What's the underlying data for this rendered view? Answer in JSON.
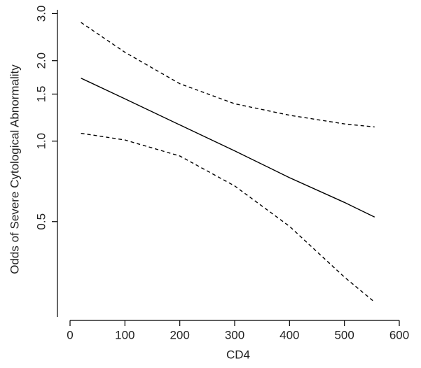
{
  "chart_data": {
    "type": "line",
    "xlabel": "CD4",
    "ylabel": "Odds of Severe Cytological Abnormality",
    "x": [
      20,
      100,
      200,
      300,
      400,
      500,
      555
    ],
    "series": [
      {
        "color": "#000000",
        "style": "solid",
        "values": [
          1.72,
          1.44,
          1.15,
          0.92,
          0.73,
          0.59,
          0.52
        ]
      },
      {
        "color": "#000000",
        "style": "dashed",
        "values": [
          2.78,
          2.15,
          1.64,
          1.38,
          1.25,
          1.16,
          1.13
        ]
      },
      {
        "color": "#000000",
        "style": "dashed",
        "values": [
          1.07,
          1.01,
          0.88,
          0.68,
          0.48,
          0.31,
          0.25
        ]
      }
    ],
    "xlim": [
      0,
      600
    ],
    "xticks": [
      0,
      100,
      200,
      300,
      400,
      500,
      600
    ],
    "ylim": [
      0.22,
      3.1
    ],
    "ylog": true,
    "yticks": [
      0.5,
      {
        "value": 1,
        "label": "1.0"
      },
      1.5,
      {
        "value": 2,
        "label": "2.0"
      },
      {
        "value": 3,
        "label": "3.0"
      }
    ],
    "grid": false
  }
}
